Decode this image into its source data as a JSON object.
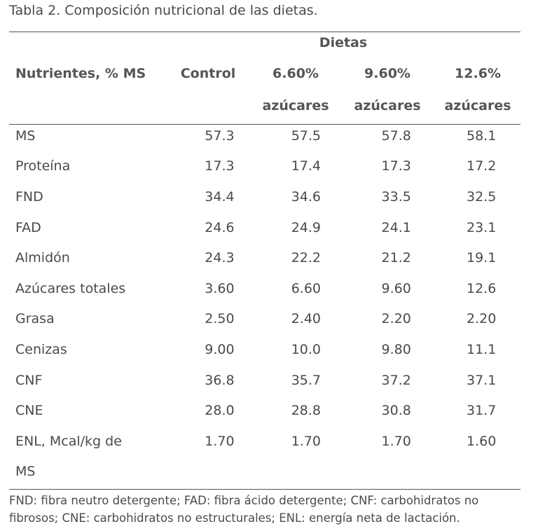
{
  "caption": "Tabla 2. Composición nutricional de las dietas.",
  "header": {
    "group": "Dietas",
    "first_col": "Nutrientes, % MS",
    "cols": [
      {
        "line1": "Control",
        "line2": ""
      },
      {
        "line1": "6.60%",
        "line2": "azúcares"
      },
      {
        "line1": "9.60%",
        "line2": "azúcares"
      },
      {
        "line1": "12.6%",
        "line2": "azúcares"
      }
    ]
  },
  "rows": [
    {
      "label": "MS",
      "values": [
        "57.3",
        "57.5",
        "57.8",
        "58.1"
      ]
    },
    {
      "label": "Proteína",
      "values": [
        "17.3",
        "17.4",
        "17.3",
        "17.2"
      ]
    },
    {
      "label": "FND",
      "values": [
        "34.4",
        "34.6",
        "33.5",
        "32.5"
      ]
    },
    {
      "label": "FAD",
      "values": [
        "24.6",
        "24.9",
        "24.1",
        "23.1"
      ]
    },
    {
      "label": "Almidón",
      "values": [
        "24.3",
        "22.2",
        "21.2",
        "19.1"
      ]
    },
    {
      "label": "Azúcares totales",
      "values": [
        "3.60",
        "6.60",
        "9.60",
        "12.6"
      ]
    },
    {
      "label": "Grasa",
      "values": [
        "2.50",
        "2.40",
        "2.20",
        "2.20"
      ]
    },
    {
      "label": "Cenizas",
      "values": [
        "9.00",
        "10.0",
        "9.80",
        "11.1"
      ]
    },
    {
      "label": "CNF",
      "values": [
        "36.8",
        "35.7",
        "37.2",
        "37.1"
      ]
    },
    {
      "label": "CNE",
      "values": [
        "28.0",
        "28.8",
        "30.8",
        "31.7"
      ]
    },
    {
      "label": "ENL, Mcal/kg de",
      "values": [
        "1.70",
        "1.70",
        "1.70",
        "1.60"
      ]
    },
    {
      "label": "MS",
      "values": [
        "",
        "",
        "",
        ""
      ]
    }
  ],
  "footnote": "FND: fibra neutro detergente; FAD: fibra ácido detergente; CNF: carbohidratos no fibrosos; CNE: carbohidratos no estructurales; ENL: energía neta de lactación."
}
